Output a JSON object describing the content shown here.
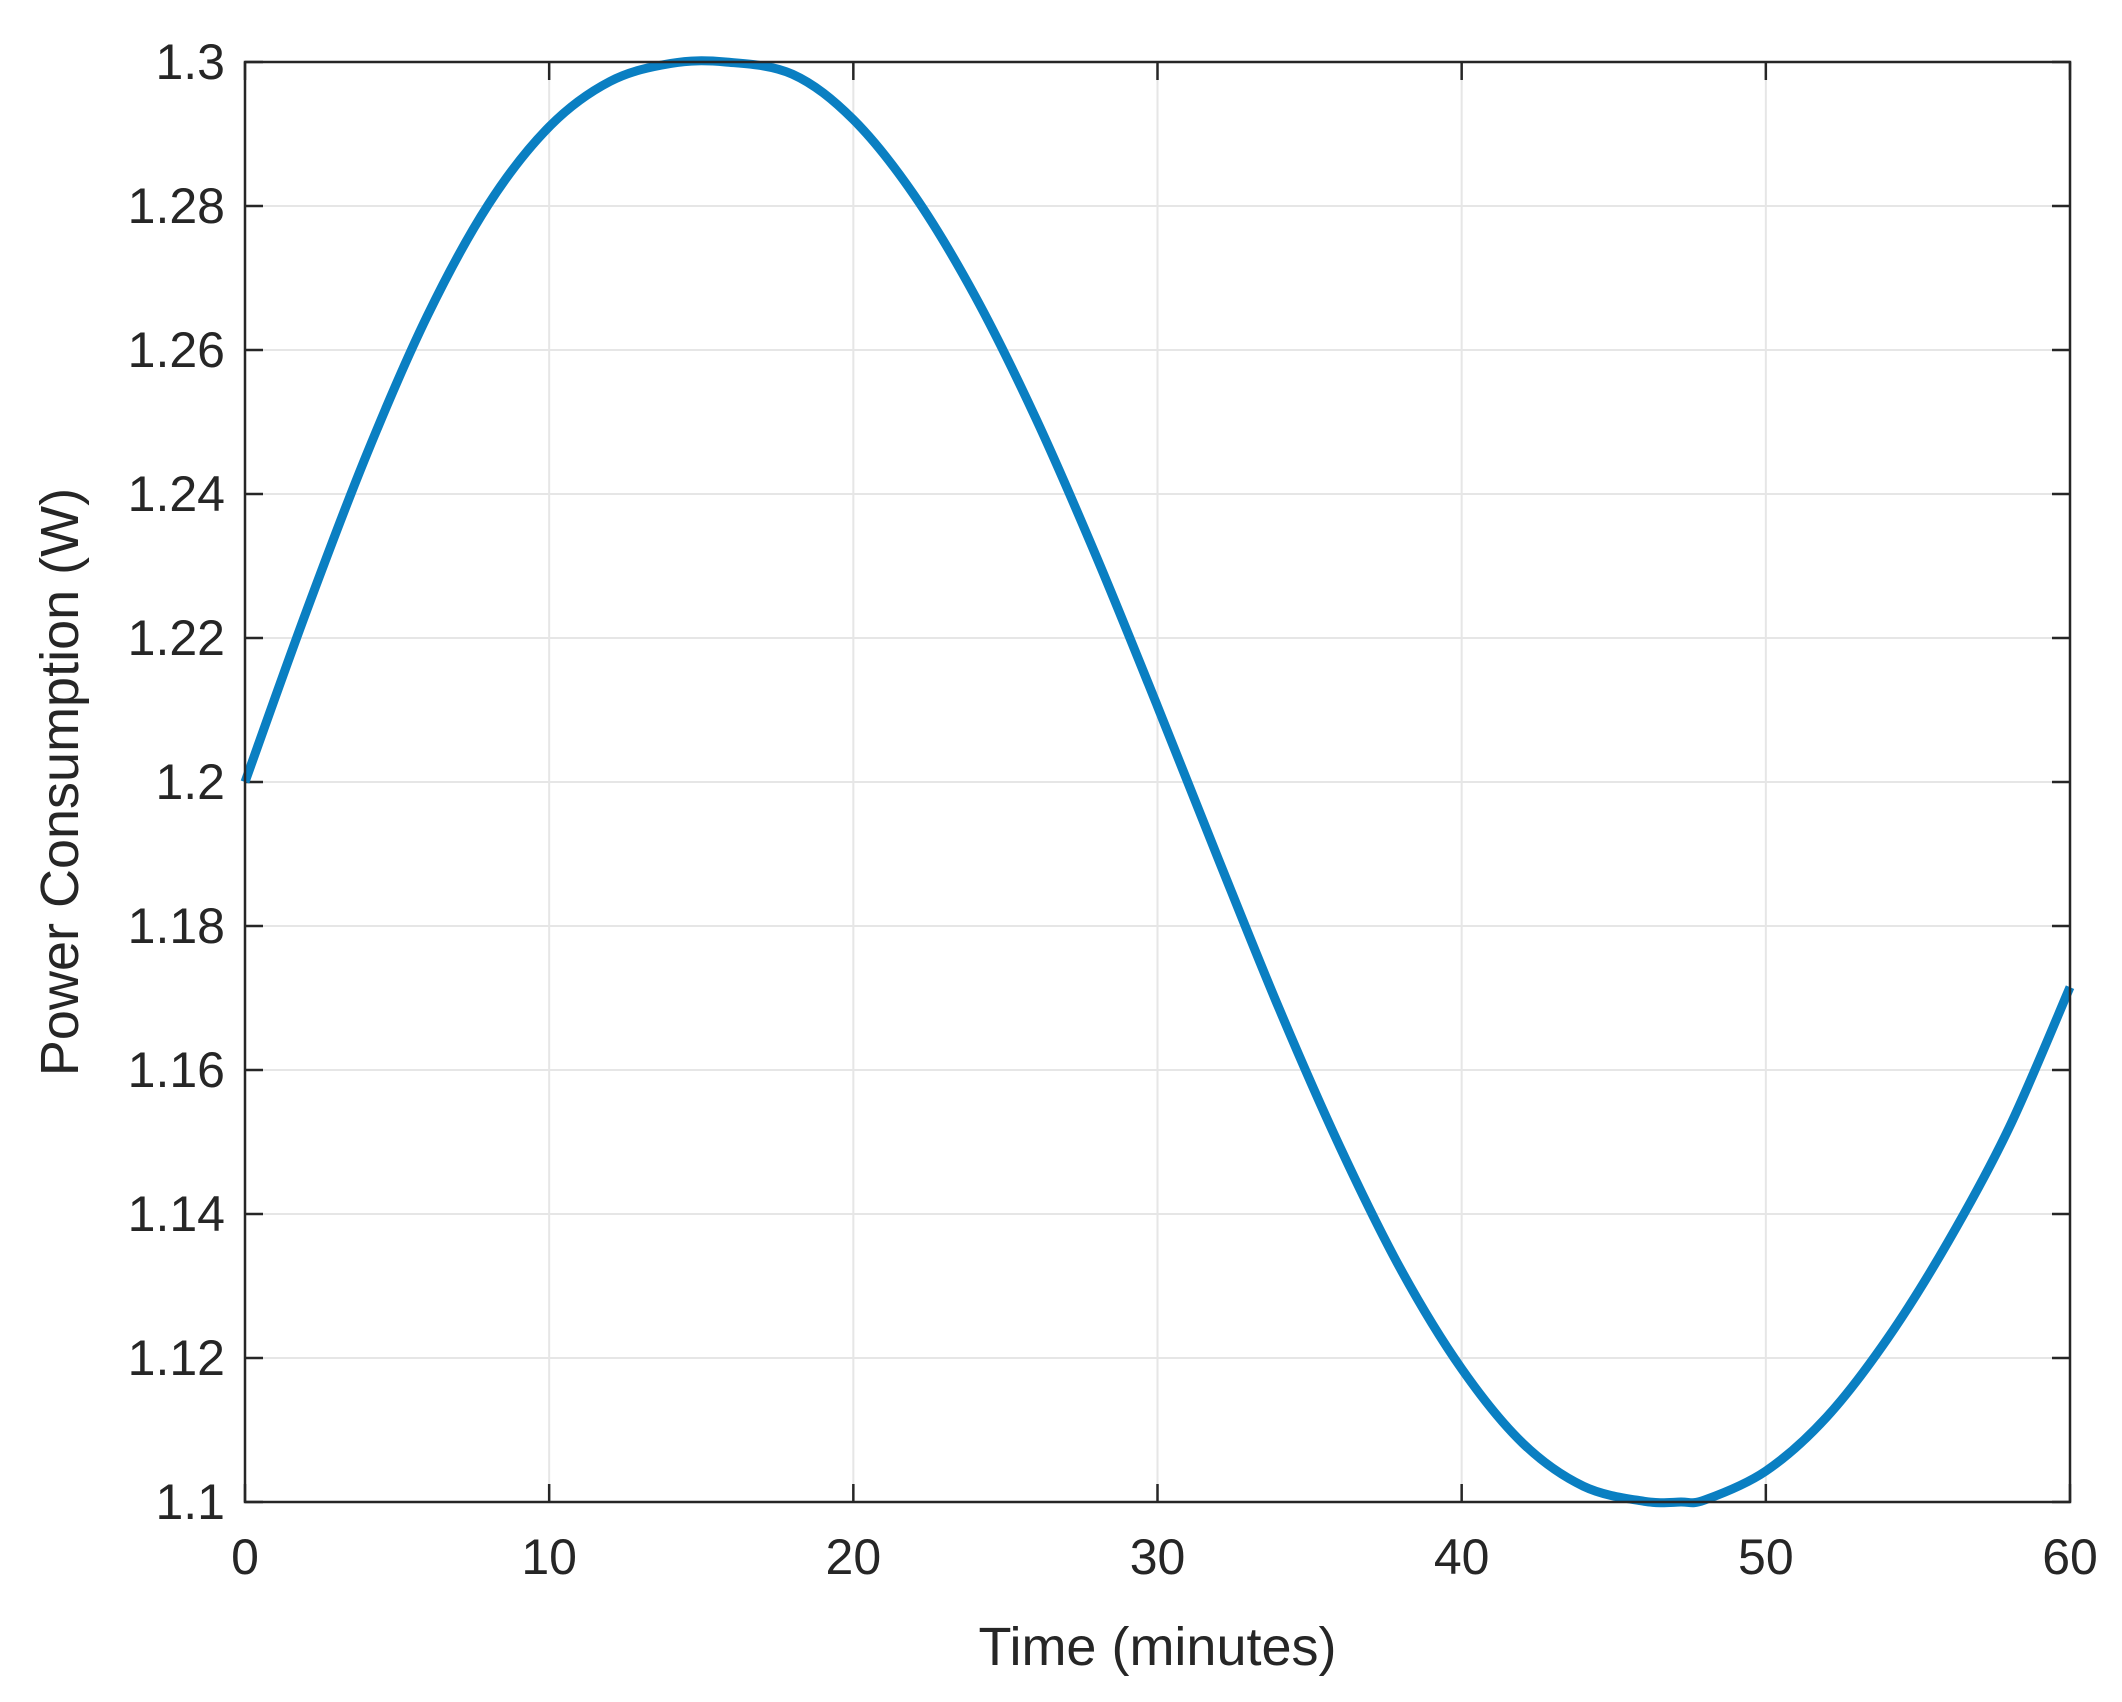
{
  "chart_data": {
    "type": "line",
    "title": "",
    "xlabel": "Time (minutes)",
    "ylabel": "Power Consumption (W)",
    "xlim": [
      0,
      60
    ],
    "ylim": [
      1.1,
      1.3
    ],
    "xticks": [
      "0",
      "10",
      "20",
      "30",
      "40",
      "50",
      "60"
    ],
    "yticks": [
      "1.1",
      "1.12",
      "1.14",
      "1.16",
      "1.18",
      "1.2",
      "1.22",
      "1.24",
      "1.26",
      "1.28",
      "1.3"
    ],
    "grid": true,
    "series": [
      {
        "color": "#0a7fc2",
        "x": [
          0,
          2,
          4,
          6,
          8,
          10,
          12,
          14,
          15.8,
          18,
          20,
          22,
          24,
          26,
          28,
          30,
          32,
          34,
          36,
          38,
          40,
          42,
          44,
          46,
          47.2,
          48,
          50,
          52,
          54,
          56,
          58,
          60
        ],
        "y": [
          1.2,
          1.2235,
          1.2455,
          1.2648,
          1.2802,
          1.291,
          1.2973,
          1.2998,
          1.3,
          1.2983,
          1.292,
          1.2815,
          1.2675,
          1.2505,
          1.2312,
          1.2105,
          1.1893,
          1.1685,
          1.1493,
          1.1323,
          1.1185,
          1.1082,
          1.1022,
          1.1001,
          1.1,
          1.1003,
          1.1043,
          1.1118,
          1.1227,
          1.1362,
          1.152,
          1.1715
        ]
      }
    ]
  }
}
